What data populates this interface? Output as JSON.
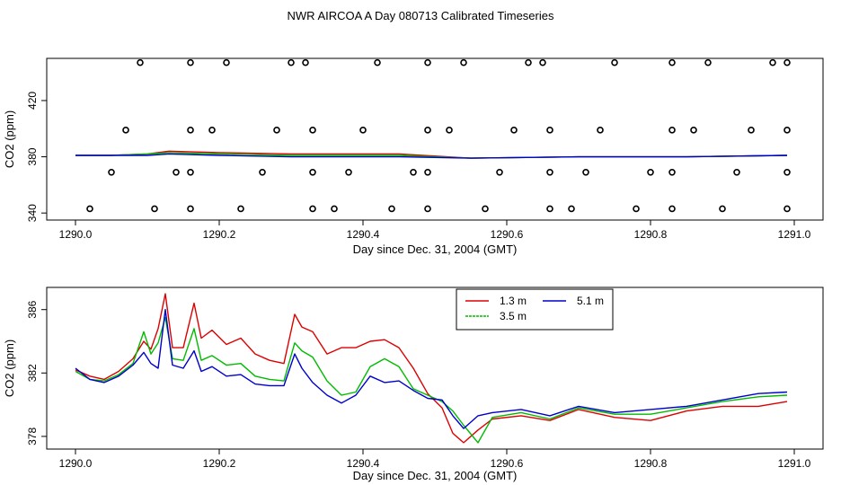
{
  "figure_title": "NWR AIRCOA A  Day 080713  Calibrated Timeseries",
  "chart_data": [
    {
      "type": "scatter+line",
      "panel": "top",
      "xlabel": "Day since Dec. 31, 2004 (GMT)",
      "ylabel": "CO2 (ppm)",
      "xlim": [
        1290.0,
        1291.0
      ],
      "ylim": [
        335,
        450
      ],
      "xticks": [
        1290.0,
        1290.2,
        1290.4,
        1290.6,
        1290.8,
        1291.0
      ],
      "xtick_labels": [
        "1290.0",
        "1290.2",
        "1290.4",
        "1290.6",
        "1290.8",
        "1291.0"
      ],
      "yticks": [
        340,
        380,
        420
      ],
      "ytick_labels": [
        "340",
        "380",
        "420"
      ],
      "points_series": [
        {
          "y": 447,
          "x": [
            1290.09,
            1290.16,
            1290.21,
            1290.3,
            1290.32,
            1290.42,
            1290.49,
            1290.54,
            1290.63,
            1290.65,
            1290.75,
            1290.83,
            1290.88,
            1290.97,
            1290.99
          ]
        },
        {
          "y": 399,
          "x": [
            1290.07,
            1290.16,
            1290.19,
            1290.28,
            1290.33,
            1290.4,
            1290.49,
            1290.52,
            1290.61,
            1290.66,
            1290.73,
            1290.83,
            1290.86,
            1290.94,
            1290.99
          ]
        },
        {
          "y": 369,
          "x": [
            1290.05,
            1290.14,
            1290.16,
            1290.26,
            1290.33,
            1290.38,
            1290.47,
            1290.49,
            1290.59,
            1290.66,
            1290.71,
            1290.8,
            1290.83,
            1290.92,
            1290.99
          ]
        },
        {
          "y": 343,
          "x": [
            1290.02,
            1290.11,
            1290.16,
            1290.23,
            1290.33,
            1290.36,
            1290.44,
            1290.49,
            1290.57,
            1290.66,
            1290.69,
            1290.78,
            1290.83,
            1290.9,
            1290.99
          ]
        }
      ],
      "series": [
        {
          "name": "1.3 m",
          "color": "#dd0000",
          "x": [
            1290.0,
            1290.05,
            1290.1,
            1290.13,
            1290.2,
            1290.3,
            1290.45,
            1290.55,
            1290.7,
            1290.85,
            1290.99
          ],
          "values": [
            381,
            381,
            382,
            384,
            383,
            382,
            382,
            379,
            380,
            380,
            381
          ]
        },
        {
          "name": "3.5 m",
          "color": "#00bb00",
          "x": [
            1290.0,
            1290.05,
            1290.1,
            1290.13,
            1290.2,
            1290.3,
            1290.45,
            1290.55,
            1290.7,
            1290.85,
            1290.99
          ],
          "values": [
            381,
            381,
            382,
            383,
            382,
            381,
            381,
            379,
            380,
            380,
            381
          ]
        },
        {
          "name": "5.1 m",
          "color": "#0000cc",
          "x": [
            1290.0,
            1290.05,
            1290.1,
            1290.13,
            1290.2,
            1290.3,
            1290.45,
            1290.55,
            1290.7,
            1290.85,
            1290.99
          ],
          "values": [
            381,
            381,
            381,
            382,
            381,
            380,
            380,
            379,
            380,
            380,
            381
          ]
        }
      ]
    },
    {
      "type": "line",
      "panel": "bottom",
      "xlabel": "Day since Dec. 31, 2004 (GMT)",
      "ylabel": "CO2 (ppm)",
      "xlim": [
        1290.0,
        1291.0
      ],
      "ylim": [
        377.2,
        387.4
      ],
      "xticks": [
        1290.0,
        1290.2,
        1290.4,
        1290.6,
        1290.8,
        1291.0
      ],
      "xtick_labels": [
        "1290.0",
        "1290.2",
        "1290.4",
        "1290.6",
        "1290.8",
        "1291.0"
      ],
      "yticks": [
        378,
        382,
        386
      ],
      "ytick_labels": [
        "378",
        "382",
        "386"
      ],
      "legend": {
        "position": "top-center",
        "entries": [
          "1.3 m",
          "3.5 m",
          "5.1 m"
        ]
      },
      "series": [
        {
          "name": "1.3 m",
          "color": "#dd0000",
          "x": [
            1290.0,
            1290.02,
            1290.04,
            1290.06,
            1290.08,
            1290.095,
            1290.105,
            1290.115,
            1290.125,
            1290.135,
            1290.15,
            1290.165,
            1290.175,
            1290.19,
            1290.21,
            1290.23,
            1290.25,
            1290.27,
            1290.29,
            1290.305,
            1290.315,
            1290.33,
            1290.35,
            1290.37,
            1290.39,
            1290.41,
            1290.43,
            1290.45,
            1290.47,
            1290.49,
            1290.51,
            1290.525,
            1290.54,
            1290.56,
            1290.58,
            1290.62,
            1290.66,
            1290.7,
            1290.75,
            1290.8,
            1290.85,
            1290.9,
            1290.95,
            1290.99
          ],
          "values": [
            382.2,
            381.8,
            381.6,
            382.1,
            382.9,
            384.0,
            383.5,
            384.8,
            387.0,
            383.6,
            383.6,
            386.4,
            384.2,
            384.7,
            383.8,
            384.2,
            383.2,
            382.8,
            382.6,
            385.7,
            384.9,
            384.6,
            383.2,
            383.6,
            383.6,
            384.0,
            384.1,
            383.6,
            382.3,
            380.7,
            379.8,
            378.2,
            377.6,
            378.4,
            379.1,
            379.3,
            379.0,
            379.7,
            379.2,
            379.0,
            379.6,
            379.9,
            379.9,
            380.2
          ]
        },
        {
          "name": "3.5 m",
          "color": "#00bb00",
          "x": [
            1290.0,
            1290.02,
            1290.04,
            1290.06,
            1290.08,
            1290.095,
            1290.105,
            1290.115,
            1290.125,
            1290.135,
            1290.15,
            1290.165,
            1290.175,
            1290.19,
            1290.21,
            1290.23,
            1290.25,
            1290.27,
            1290.29,
            1290.305,
            1290.315,
            1290.33,
            1290.35,
            1290.37,
            1290.39,
            1290.41,
            1290.43,
            1290.45,
            1290.47,
            1290.49,
            1290.51,
            1290.525,
            1290.54,
            1290.56,
            1290.58,
            1290.62,
            1290.66,
            1290.7,
            1290.75,
            1290.8,
            1290.85,
            1290.9,
            1290.95,
            1290.99
          ],
          "values": [
            382.1,
            381.6,
            381.5,
            381.9,
            382.6,
            384.6,
            383.2,
            383.9,
            385.5,
            382.9,
            382.8,
            384.8,
            382.8,
            383.1,
            382.5,
            382.6,
            381.8,
            381.6,
            381.5,
            383.9,
            383.4,
            383.0,
            381.5,
            380.6,
            380.8,
            382.4,
            382.9,
            382.4,
            381.0,
            380.6,
            380.2,
            379.6,
            378.7,
            377.6,
            379.2,
            379.5,
            379.1,
            379.8,
            379.4,
            379.4,
            379.8,
            380.2,
            380.5,
            380.6
          ]
        },
        {
          "name": "5.1 m",
          "color": "#0000cc",
          "x": [
            1290.0,
            1290.02,
            1290.04,
            1290.06,
            1290.08,
            1290.095,
            1290.105,
            1290.115,
            1290.125,
            1290.135,
            1290.15,
            1290.165,
            1290.175,
            1290.19,
            1290.21,
            1290.23,
            1290.25,
            1290.27,
            1290.29,
            1290.305,
            1290.315,
            1290.33,
            1290.35,
            1290.37,
            1290.39,
            1290.41,
            1290.43,
            1290.45,
            1290.47,
            1290.49,
            1290.51,
            1290.525,
            1290.54,
            1290.56,
            1290.58,
            1290.62,
            1290.66,
            1290.7,
            1290.75,
            1290.8,
            1290.85,
            1290.9,
            1290.95,
            1290.99
          ],
          "values": [
            382.3,
            381.6,
            381.4,
            381.8,
            382.5,
            383.3,
            382.6,
            382.3,
            386.0,
            382.5,
            382.3,
            383.4,
            382.1,
            382.4,
            381.8,
            381.9,
            381.3,
            381.2,
            381.2,
            383.2,
            382.3,
            381.4,
            380.6,
            380.1,
            380.6,
            381.8,
            381.4,
            381.5,
            380.9,
            380.4,
            380.3,
            379.3,
            378.5,
            379.3,
            379.5,
            379.7,
            379.3,
            379.9,
            379.5,
            379.7,
            379.9,
            380.3,
            380.7,
            380.8
          ]
        }
      ]
    }
  ]
}
